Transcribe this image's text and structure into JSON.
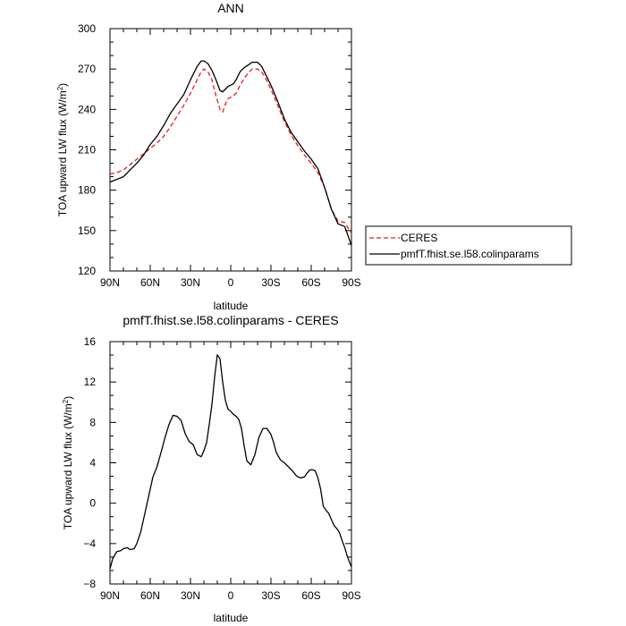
{
  "chart_data": [
    {
      "type": "line",
      "title": "ANN",
      "xlabel": "latitude",
      "ylabel": "TOA upward LW flux (W/m²)",
      "ylabel_parts": {
        "main": "TOA upward LW flux (W/m",
        "sup": "2",
        "end": ")"
      },
      "xlim": [
        -90,
        90
      ],
      "ylim": [
        120,
        300
      ],
      "x_ticks": [
        {
          "value": -90,
          "label": "90N"
        },
        {
          "value": -60,
          "label": "60N"
        },
        {
          "value": -30,
          "label": "30N"
        },
        {
          "value": 0,
          "label": "0"
        },
        {
          "value": 30,
          "label": "30S"
        },
        {
          "value": 60,
          "label": "60S"
        },
        {
          "value": 90,
          "label": "90S"
        }
      ],
      "y_ticks": [
        120,
        150,
        180,
        210,
        240,
        270,
        300
      ],
      "legend": "right",
      "series": [
        {
          "name": "CERES",
          "color": "#e02020",
          "dash": "dashed",
          "x": [
            -90,
            -85,
            -80,
            -75,
            -70,
            -65,
            -60,
            -55,
            -50,
            -45,
            -40,
            -35,
            -30,
            -25,
            -22,
            -20,
            -17,
            -14,
            -11,
            -8,
            -6,
            -4,
            -2,
            0,
            2,
            4,
            7,
            10,
            13,
            16,
            20,
            23,
            26,
            30,
            35,
            40,
            45,
            50,
            55,
            60,
            65,
            70,
            75,
            80,
            85,
            90
          ],
          "y": [
            192,
            193,
            195,
            199,
            203,
            207,
            211,
            215,
            220,
            227,
            235,
            243,
            252,
            262,
            268,
            270,
            268,
            262,
            250,
            240,
            238,
            244,
            248,
            249,
            250,
            252,
            258,
            263,
            267,
            270,
            270,
            268,
            263,
            255,
            243,
            231,
            221,
            213,
            206,
            200,
            193,
            182,
            166,
            157,
            156,
            148
          ]
        },
        {
          "name": "pmfT.fhist.se.l58.colinparams",
          "color": "#000000",
          "dash": "solid",
          "x": [
            -90,
            -85,
            -80,
            -75,
            -70,
            -65,
            -60,
            -55,
            -50,
            -45,
            -40,
            -35,
            -30,
            -25,
            -22,
            -20,
            -17,
            -14,
            -11,
            -8,
            -6,
            -4,
            -2,
            0,
            2,
            4,
            7,
            10,
            13,
            16,
            20,
            23,
            26,
            30,
            35,
            40,
            45,
            50,
            55,
            60,
            65,
            70,
            75,
            80,
            85,
            90
          ],
          "y": [
            186,
            188,
            190,
            195,
            200,
            206,
            214,
            220,
            228,
            237,
            244,
            251,
            262,
            272,
            276,
            276,
            274,
            269,
            262,
            254,
            253,
            255,
            257,
            258,
            259,
            262,
            268,
            271,
            273,
            275,
            275,
            272,
            266,
            258,
            246,
            233,
            223,
            216,
            209,
            203,
            196,
            182,
            166,
            155,
            153,
            139
          ]
        }
      ]
    },
    {
      "type": "line",
      "title": "pmfT.fhist.se.l58.colinparams - CERES",
      "xlabel": "latitude",
      "ylabel": "TOA upward LW flux (W/m²)",
      "ylabel_parts": {
        "main": "TOA upward LW flux (W/m",
        "sup": "2",
        "end": ")"
      },
      "xlim": [
        -90,
        90
      ],
      "ylim": [
        -8,
        16
      ],
      "x_ticks": [
        {
          "value": -90,
          "label": "90N"
        },
        {
          "value": -60,
          "label": "60N"
        },
        {
          "value": -30,
          "label": "30N"
        },
        {
          "value": 0,
          "label": "0"
        },
        {
          "value": 30,
          "label": "30S"
        },
        {
          "value": 60,
          "label": "60S"
        },
        {
          "value": 90,
          "label": "90S"
        }
      ],
      "y_ticks": [
        -8,
        -4,
        0,
        4,
        8,
        12,
        16
      ],
      "series": [
        {
          "color": "#000000",
          "dash": "solid",
          "x": [
            -90,
            -88,
            -85,
            -82,
            -80,
            -77,
            -75,
            -72,
            -70,
            -67,
            -64,
            -61,
            -58,
            -55,
            -52,
            -49,
            -46,
            -43,
            -40,
            -37,
            -34,
            -31,
            -28,
            -25,
            -22,
            -20,
            -18,
            -16,
            -14,
            -12,
            -10,
            -8,
            -6,
            -4,
            -2,
            0,
            2,
            4,
            6,
            8,
            10,
            12,
            15,
            18,
            21,
            24,
            27,
            30,
            32,
            34,
            37,
            40,
            43,
            46,
            49,
            52,
            55,
            57,
            59,
            61,
            63,
            65,
            67,
            69,
            71,
            73,
            75,
            77,
            79,
            81,
            83,
            85,
            87,
            89,
            90
          ],
          "y": [
            -6.5,
            -5.5,
            -4.8,
            -4.7,
            -4.5,
            -4.4,
            -4.6,
            -4.5,
            -4.0,
            -2.8,
            -1.0,
            0.8,
            2.6,
            3.6,
            5.0,
            6.5,
            7.8,
            8.7,
            8.6,
            8.2,
            6.9,
            6.1,
            5.8,
            4.8,
            4.6,
            5.2,
            6.0,
            7.8,
            9.8,
            12.5,
            14.7,
            14.3,
            12.0,
            10.2,
            9.3,
            9.1,
            8.8,
            8.6,
            8.3,
            7.4,
            5.7,
            4.2,
            3.8,
            4.8,
            6.5,
            7.4,
            7.4,
            6.8,
            6.0,
            5.0,
            4.3,
            4.0,
            3.6,
            3.2,
            2.7,
            2.5,
            2.6,
            3.0,
            3.3,
            3.3,
            3.2,
            2.5,
            1.4,
            -0.3,
            -0.7,
            -1.0,
            -1.6,
            -2.2,
            -2.5,
            -2.9,
            -3.7,
            -4.4,
            -5.3,
            -6.0,
            -6.3
          ]
        }
      ]
    }
  ]
}
